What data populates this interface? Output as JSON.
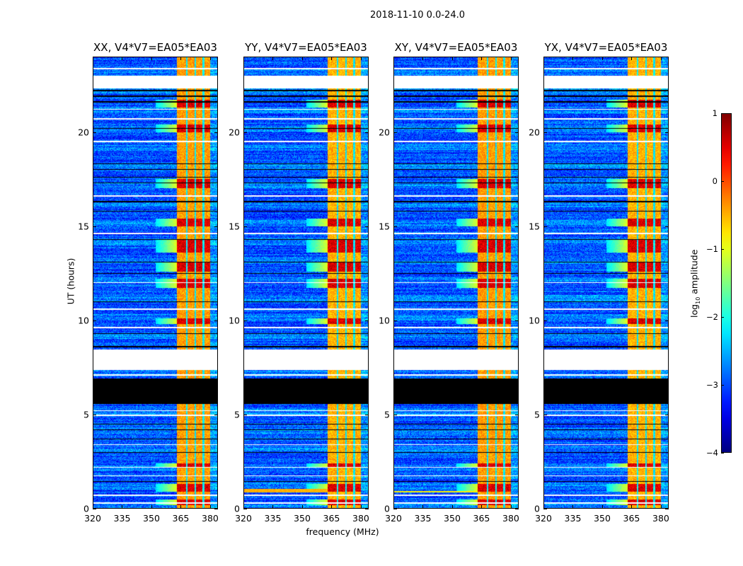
{
  "chart_data": {
    "type": "heatmap",
    "title": "2018-11-10 0.0-24.0",
    "xlabel": "frequency (MHz)",
    "ylabel": "UT (hours)",
    "xlim": [
      320,
      384
    ],
    "ylim": [
      0,
      24
    ],
    "xticks": [
      "320",
      "335",
      "350",
      "365",
      "380"
    ],
    "xtick_values": [
      320,
      335,
      350,
      365,
      380
    ],
    "yticks": [
      "0",
      "5",
      "10",
      "15",
      "20"
    ],
    "ytick_values": [
      0,
      5,
      10,
      15,
      20
    ],
    "panels": [
      {
        "title": "XX, V4*V7=EA05*EA03"
      },
      {
        "title": "YY, V4*V7=EA05*EA03"
      },
      {
        "title": "XY, V4*V7=EA05*EA03"
      },
      {
        "title": "YX, V4*V7=EA05*EA03"
      }
    ],
    "colorbar": {
      "label_main": "log",
      "label_sub": "10",
      "label_rest": " amplitude",
      "range": [
        -4,
        1
      ],
      "tick_labels": [
        "1",
        "0",
        "−1",
        "−2",
        "−3",
        "−4"
      ],
      "tick_values": [
        1,
        0,
        -1,
        -2,
        -3,
        -4
      ],
      "colormap": "jet"
    },
    "background_log_amplitude": -3.0,
    "rfi_band_mhz": [
      363,
      380
    ],
    "rfi_channel_gaps_mhz": [
      368,
      372.5,
      376.5
    ],
    "rfi_level_log_amplitude": -0.5,
    "strong_rfi_hours": [
      [
        13.6,
        14.3
      ],
      [
        12.6,
        13.1
      ],
      [
        11.7,
        12.2
      ],
      [
        0.9,
        1.3
      ],
      [
        20.0,
        20.4
      ],
      [
        17.0,
        17.5
      ],
      [
        21.3,
        21.7
      ],
      [
        9.8,
        10.1
      ],
      [
        2.2,
        2.4
      ],
      [
        0.2,
        0.5
      ],
      [
        15.0,
        15.4
      ]
    ],
    "flagged_white_hours": [
      [
        22.3,
        23.0
      ],
      [
        7.38,
        8.46
      ]
    ],
    "zero_black_hours": [
      [
        5.55,
        6.9
      ]
    ],
    "white_line_hours": [
      23.35,
      21.2,
      20.7,
      19.5,
      16.6,
      10.6,
      9.6,
      7.1,
      5.2,
      4.95,
      3.4,
      2.2,
      1.75,
      0.7,
      0.3,
      12.0,
      14.6
    ],
    "black_line_hours": [
      22.2,
      21.9,
      21.6,
      20.2,
      18.3,
      18.0,
      17.6,
      17.3,
      16.3,
      15.8,
      14.3,
      13.1,
      12.5,
      11.0,
      9.3,
      8.6,
      4.5,
      4.2,
      3.7,
      3.0,
      1.45
    ]
  }
}
